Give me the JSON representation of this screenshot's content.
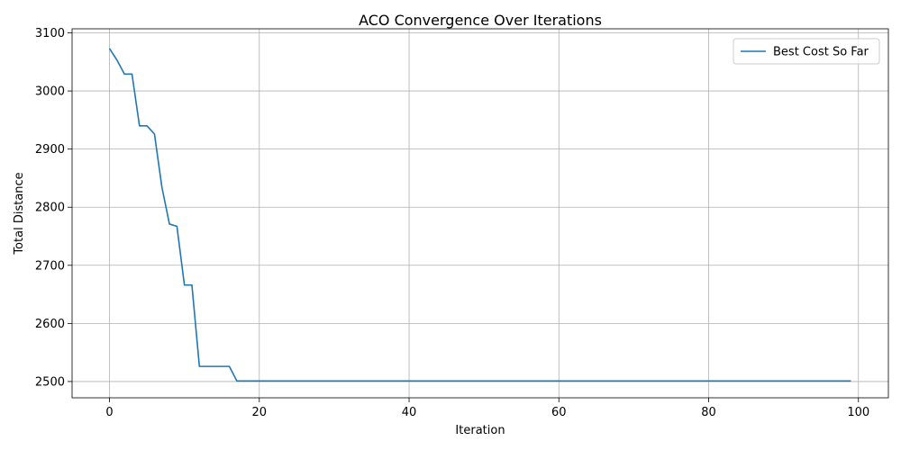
{
  "chart_data": {
    "type": "line",
    "title": "ACO Convergence Over Iterations",
    "xlabel": "Iteration",
    "ylabel": "Total Distance",
    "xlim": [
      -5,
      104
    ],
    "ylim": [
      2472,
      3107
    ],
    "xticks": [
      0,
      20,
      40,
      60,
      80,
      100
    ],
    "yticks": [
      2500,
      2600,
      2700,
      2800,
      2900,
      3000,
      3100
    ],
    "grid": true,
    "legend_position": "top-right",
    "series": [
      {
        "name": "Best Cost So Far",
        "color": "#1f77b4",
        "x": [
          0,
          1,
          2,
          3,
          4,
          5,
          6,
          7,
          8,
          9,
          10,
          11,
          12,
          13,
          14,
          15,
          16,
          17,
          18,
          99
        ],
        "y": [
          3073,
          3053,
          3029,
          3029,
          2940,
          2940,
          2926,
          2834,
          2771,
          2767,
          2666,
          2666,
          2526,
          2526,
          2526,
          2526,
          2526,
          2501,
          2501,
          2501
        ]
      }
    ]
  }
}
